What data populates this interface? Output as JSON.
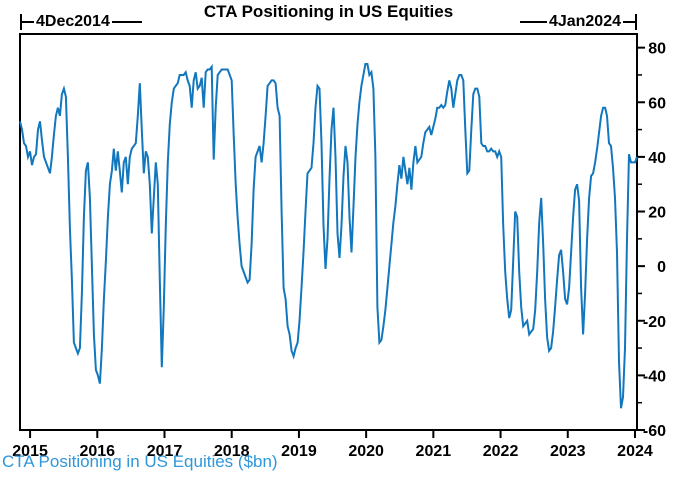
{
  "chart_data": {
    "type": "line",
    "title": "CTA Positioning in US Equities",
    "footer": "CTA Positioning in US Equities ($bn)",
    "start_marker": "4Dec2014",
    "end_marker": "4Jan2024",
    "x_ticks": [
      2015,
      2016,
      2017,
      2018,
      2019,
      2020,
      2021,
      2022,
      2023,
      2024
    ],
    "x_range": [
      2014.85,
      2024.03
    ],
    "ylim": [
      -60,
      85
    ],
    "y_ticks": [
      80,
      60,
      40,
      20,
      0,
      -20,
      -40,
      -60
    ],
    "y_minor_step": 10,
    "grid": false,
    "legend": "none",
    "line_color": "#1277BD",
    "text_color": "#000000",
    "footer_color": "#2F97DA",
    "frame_color": "#000000",
    "series": [
      {
        "name": "CTA Positioning in US Equities ($bn)",
        "values": [
          53,
          50,
          45,
          44,
          40,
          42,
          37,
          40,
          41,
          50,
          53,
          46,
          40,
          38,
          36,
          34,
          40,
          48,
          55,
          58,
          55,
          63,
          65,
          62,
          40,
          14,
          -5,
          -28,
          -30,
          -32,
          -30,
          -10,
          18,
          35,
          38,
          25,
          0,
          -25,
          -38,
          -40,
          -43,
          -30,
          -12,
          2,
          18,
          30,
          35,
          43,
          35,
          42,
          35,
          27,
          38,
          40,
          30,
          40,
          43,
          44,
          45,
          55,
          67,
          50,
          34,
          42,
          40,
          30,
          12,
          25,
          38,
          30,
          -5,
          -37,
          -15,
          15,
          38,
          52,
          60,
          65,
          66,
          67,
          70,
          70,
          70,
          71,
          68,
          66,
          58,
          68,
          71,
          65,
          66,
          69,
          58,
          71,
          72,
          72,
          73,
          39,
          58,
          70,
          71,
          72,
          72,
          72,
          72,
          70,
          68,
          48,
          30,
          18,
          8,
          0,
          -2,
          -4,
          -6,
          -5,
          8,
          28,
          40,
          42,
          44,
          38,
          45,
          55,
          66,
          67,
          68,
          68,
          67,
          58,
          55,
          20,
          -8,
          -12,
          -22,
          -25,
          -31,
          -33,
          -30,
          -28,
          -20,
          -8,
          5,
          20,
          34,
          35,
          36,
          45,
          58,
          66,
          65,
          45,
          15,
          -1,
          10,
          32,
          50,
          58,
          40,
          12,
          3,
          15,
          33,
          44,
          38,
          18,
          5,
          22,
          40,
          52,
          60,
          66,
          70,
          74,
          74,
          70,
          71,
          65,
          40,
          -15,
          -28,
          -27,
          -22,
          -16,
          -8,
          0,
          8,
          16,
          22,
          30,
          37,
          32,
          40,
          35,
          30,
          36,
          28,
          38,
          44,
          38,
          39,
          40,
          45,
          49,
          50,
          51,
          48,
          51,
          54,
          58,
          58,
          59,
          58,
          59,
          64,
          68,
          65,
          58,
          63,
          68,
          70,
          70,
          68,
          50,
          34,
          35,
          50,
          63,
          65,
          65,
          62,
          45,
          44,
          44,
          42,
          42,
          43,
          42,
          42,
          40,
          42,
          40,
          15,
          -2,
          -12,
          -19,
          -16,
          2,
          20,
          18,
          -2,
          -15,
          -22,
          -21,
          -20,
          -25,
          -24,
          -23,
          -16,
          -2,
          16,
          25,
          8,
          -12,
          -26,
          -31,
          -30,
          -24,
          -15,
          -5,
          4,
          6,
          -2,
          -12,
          -14,
          -8,
          5,
          18,
          28,
          30,
          24,
          -8,
          -25,
          -10,
          10,
          25,
          33,
          34,
          38,
          43,
          49,
          55,
          58,
          58,
          55,
          45,
          44,
          36,
          25,
          5,
          -35,
          -52,
          -48,
          -30,
          10,
          41,
          38,
          38,
          38,
          40
        ]
      }
    ]
  }
}
